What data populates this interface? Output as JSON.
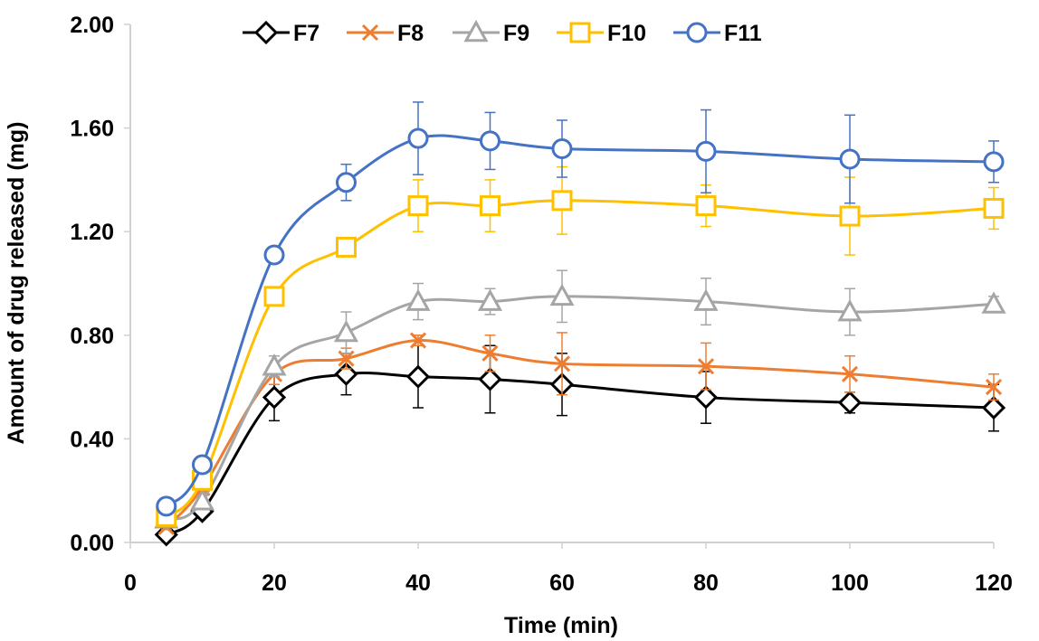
{
  "chart_data": {
    "type": "line",
    "title": "",
    "xlabel": "Time (min)",
    "ylabel": "Amount of drug released (mg)",
    "xlim": [
      0,
      120
    ],
    "ylim": [
      0,
      2.0
    ],
    "xticks": [
      0,
      20,
      40,
      60,
      80,
      100,
      120
    ],
    "yticks": [
      0.0,
      0.4,
      0.8,
      1.2,
      1.6,
      2.0
    ],
    "ytick_labels": [
      "0.00",
      "0.40",
      "0.80",
      "1.20",
      "1.60",
      "2.00"
    ],
    "xtick_labels": [
      "0",
      "20",
      "40",
      "60",
      "80",
      "100",
      "120"
    ],
    "grid": false,
    "legend_position": "top",
    "x": [
      5,
      10,
      20,
      30,
      40,
      50,
      60,
      80,
      100,
      120
    ],
    "series": [
      {
        "name": "F7",
        "color": "#000000",
        "marker": "diamond",
        "values": [
          0.03,
          0.12,
          0.56,
          0.65,
          0.64,
          0.63,
          0.61,
          0.56,
          0.54,
          0.52
        ],
        "errors": [
          0.01,
          0.02,
          0.09,
          0.08,
          0.12,
          0.13,
          0.12,
          0.1,
          0.04,
          0.09
        ]
      },
      {
        "name": "F8",
        "color": "#ED7D31",
        "marker": "x",
        "values": [
          0.06,
          0.21,
          0.65,
          0.71,
          0.78,
          0.73,
          0.69,
          0.68,
          0.65,
          0.6
        ],
        "errors": [
          0.01,
          0.02,
          0.04,
          0.04,
          0.02,
          0.07,
          0.12,
          0.09,
          0.07,
          0.05
        ]
      },
      {
        "name": "F9",
        "color": "#A5A5A5",
        "marker": "triangle",
        "values": [
          0.09,
          0.16,
          0.68,
          0.81,
          0.93,
          0.93,
          0.95,
          0.93,
          0.89,
          0.92
        ],
        "errors": [
          0.01,
          0.02,
          0.04,
          0.08,
          0.07,
          0.05,
          0.1,
          0.09,
          0.09,
          0.03
        ]
      },
      {
        "name": "F10",
        "color": "#FFC000",
        "marker": "square",
        "values": [
          0.1,
          0.24,
          0.95,
          1.14,
          1.3,
          1.3,
          1.32,
          1.3,
          1.26,
          1.29
        ],
        "errors": [
          0.01,
          0.02,
          0.02,
          0.02,
          0.1,
          0.1,
          0.13,
          0.08,
          0.15,
          0.08
        ]
      },
      {
        "name": "F11",
        "color": "#4472C4",
        "marker": "circle",
        "values": [
          0.14,
          0.3,
          1.11,
          1.39,
          1.56,
          1.55,
          1.52,
          1.51,
          1.48,
          1.47
        ],
        "errors": [
          0.01,
          0.02,
          0.02,
          0.07,
          0.14,
          0.11,
          0.11,
          0.16,
          0.17,
          0.08
        ]
      }
    ]
  }
}
